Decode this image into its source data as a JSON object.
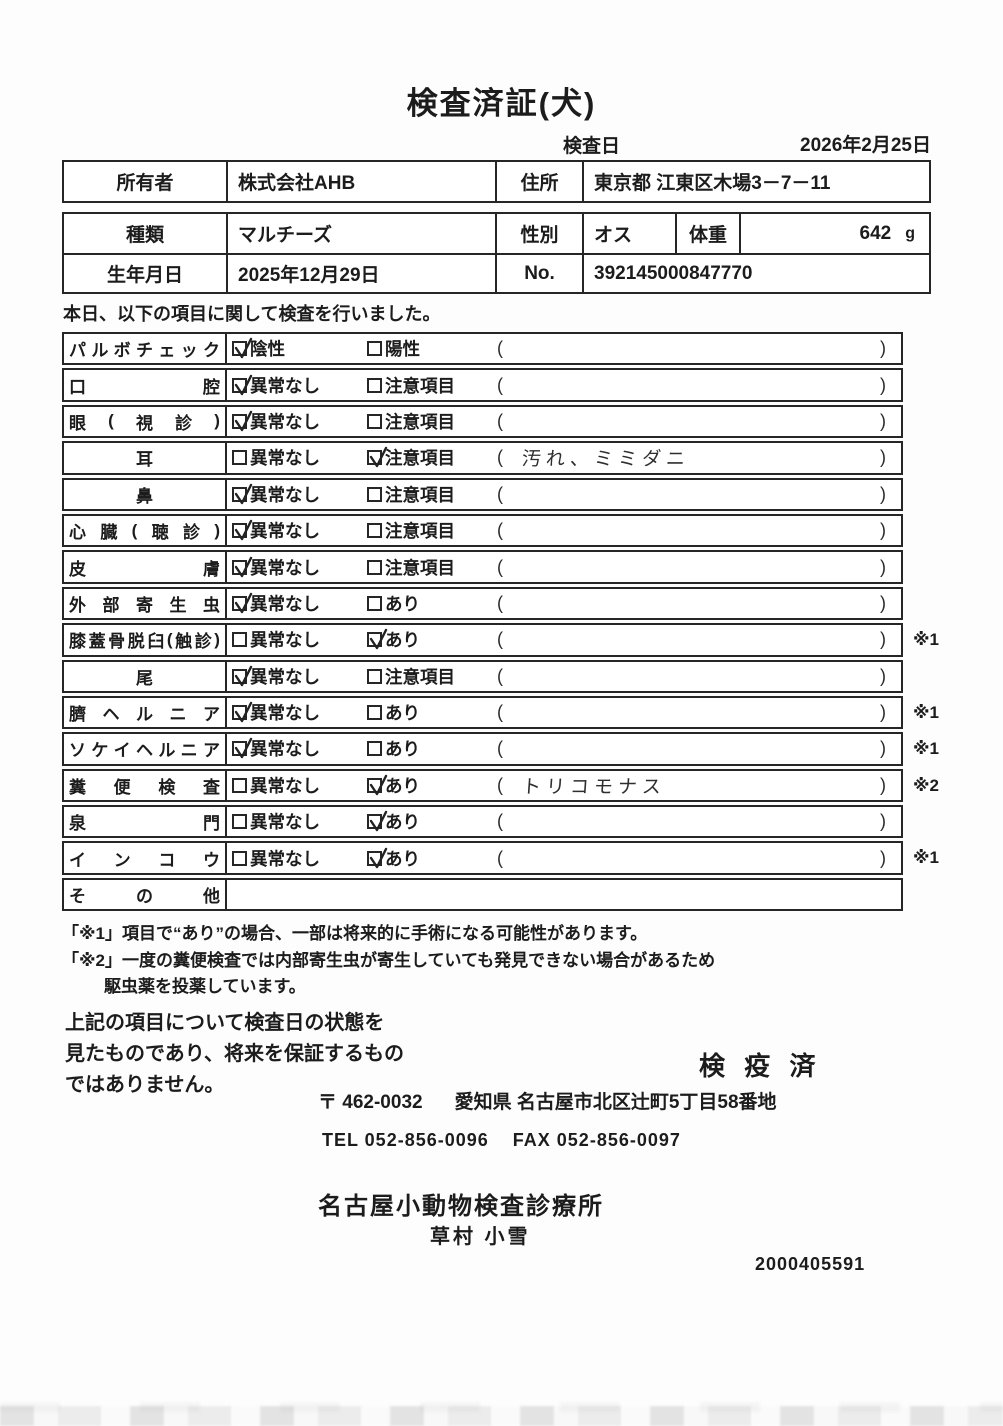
{
  "doc": {
    "title": "検査済証(犬)",
    "date_label": "検査日",
    "date_value": "2026年2月25日",
    "intro": "本日、以下の項目に関して検査を行いました。",
    "serial": "2000405591"
  },
  "owner": {
    "owner_label": "所有者",
    "owner_value": "株式会社AHB",
    "address_label": "住所",
    "address_value": "東京都 江東区木場3－7－11"
  },
  "pet": {
    "breed_label": "種類",
    "breed_value": "マルチーズ",
    "sex_label": "性別",
    "sex_value": "オス",
    "weight_label": "体重",
    "weight_value": "642",
    "weight_unit": "g",
    "birth_label": "生年月日",
    "birth_value": "2025年12月29日",
    "no_label": "No.",
    "no_value": "392145000847770"
  },
  "exam": {
    "rows": [
      {
        "label": "パルボチェック",
        "opt1": "陰性",
        "opt1_checked": true,
        "opt2": "陽性",
        "opt2_checked": false,
        "note": "",
        "mark": ""
      },
      {
        "label": "口腔",
        "opt1": "異常なし",
        "opt1_checked": true,
        "opt2": "注意項目",
        "opt2_checked": false,
        "note": "",
        "mark": ""
      },
      {
        "label": "眼(視診)",
        "opt1": "異常なし",
        "opt1_checked": true,
        "opt2": "注意項目",
        "opt2_checked": false,
        "note": "",
        "mark": ""
      },
      {
        "label": "耳",
        "opt1": "異常なし",
        "opt1_checked": false,
        "opt2": "注意項目",
        "opt2_checked": true,
        "note": "汚れ、ミミダニ",
        "mark": ""
      },
      {
        "label": "鼻",
        "opt1": "異常なし",
        "opt1_checked": true,
        "opt2": "注意項目",
        "opt2_checked": false,
        "note": "",
        "mark": ""
      },
      {
        "label": "心臓(聴診)",
        "opt1": "異常なし",
        "opt1_checked": true,
        "opt2": "注意項目",
        "opt2_checked": false,
        "note": "",
        "mark": ""
      },
      {
        "label": "皮膚",
        "opt1": "異常なし",
        "opt1_checked": true,
        "opt2": "注意項目",
        "opt2_checked": false,
        "note": "",
        "mark": ""
      },
      {
        "label": "外部寄生虫",
        "opt1": "異常なし",
        "opt1_checked": true,
        "opt2": "あり",
        "opt2_checked": false,
        "note": "",
        "mark": ""
      },
      {
        "label": "膝蓋骨脱臼(触診)",
        "opt1": "異常なし",
        "opt1_checked": false,
        "opt2": "あり",
        "opt2_checked": true,
        "note": "",
        "mark": "※1"
      },
      {
        "label": "尾",
        "opt1": "異常なし",
        "opt1_checked": true,
        "opt2": "注意項目",
        "opt2_checked": false,
        "note": "",
        "mark": ""
      },
      {
        "label": "臍ヘルニア",
        "opt1": "異常なし",
        "opt1_checked": true,
        "opt2": "あり",
        "opt2_checked": false,
        "note": "",
        "mark": "※1"
      },
      {
        "label": "ソケイヘルニア",
        "opt1": "異常なし",
        "opt1_checked": true,
        "opt2": "あり",
        "opt2_checked": false,
        "note": "",
        "mark": "※1"
      },
      {
        "label": "糞便検査",
        "opt1": "異常なし",
        "opt1_checked": false,
        "opt2": "あり",
        "opt2_checked": true,
        "note": "トリコモナス",
        "mark": "※2"
      },
      {
        "label": "泉門",
        "opt1": "異常なし",
        "opt1_checked": false,
        "opt2": "あり",
        "opt2_checked": true,
        "note": "",
        "mark": ""
      },
      {
        "label": "インコウ",
        "opt1": "異常なし",
        "opt1_checked": false,
        "opt2": "あり",
        "opt2_checked": true,
        "note": "",
        "mark": "※1"
      },
      {
        "label": "その他",
        "opt1": "",
        "opt1_checked": false,
        "opt2": "",
        "opt2_checked": false,
        "note": "",
        "mark": ""
      }
    ]
  },
  "footnotes": {
    "line1": "「※1」項目で“あり”の場合、一部は将来的に手術になる可能性があります。",
    "line2": "「※2」一度の糞便検査では内部寄生虫が寄生していても発見できない場合があるため",
    "line3": "駆虫薬を投薬しています。"
  },
  "disclaimer": {
    "line1": "上記の項目について検査日の状態を",
    "line2": "見たものであり、将来を保証するもの",
    "line3": "ではありません。"
  },
  "clinic": {
    "stamp": "検 疫 済",
    "postal": "〒 462-0032",
    "address": "愛知県 名古屋市北区辻町5丁目58番地",
    "tel": "TEL 052-856-0096",
    "fax": "FAX 052-856-0097",
    "name": "名古屋小動物検査診療所",
    "veterinarian": "草村 小雪"
  },
  "colors": {
    "ink": "#1c1c1c",
    "paper": "#fdfdfd",
    "border": "#262626"
  }
}
